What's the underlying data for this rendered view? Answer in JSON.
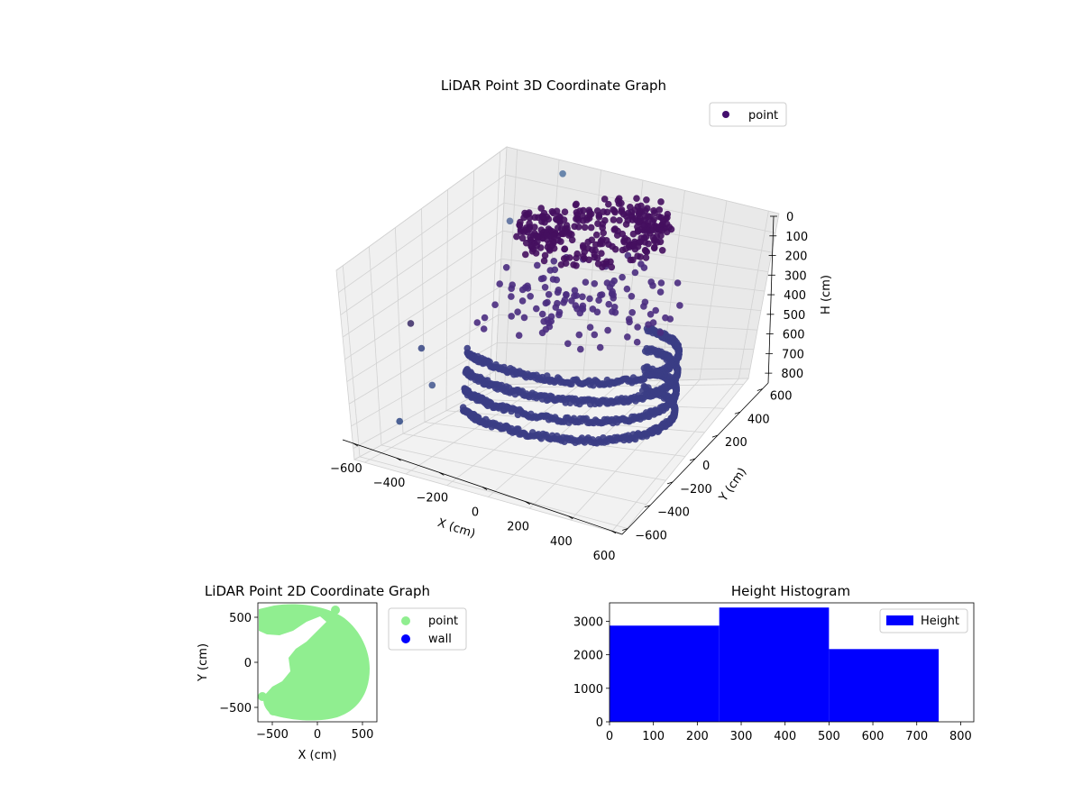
{
  "chart_data": [
    {
      "type": "scatter",
      "projection": "3d",
      "title": "LiDAR Point 3D Coordinate Graph",
      "xlabel": "X (cm)",
      "ylabel": "Y (cm)",
      "zlabel": "H (cm)",
      "x_ticks": [
        "−600",
        "−400",
        "−200",
        "0",
        "200",
        "400",
        "600"
      ],
      "y_ticks": [
        "−600",
        "−400",
        "−200",
        "0",
        "200",
        "400",
        "600"
      ],
      "z_ticks": [
        "0",
        "100",
        "200",
        "300",
        "400",
        "500",
        "600",
        "700",
        "800"
      ],
      "xlim": [
        -650,
        650
      ],
      "ylim": [
        -650,
        650
      ],
      "zlim": [
        0,
        850
      ],
      "z_inverted": true,
      "grid": true,
      "legend": {
        "position": "top-right",
        "entries": [
          "point"
        ]
      },
      "series": [
        {
          "name": "point",
          "color": "#440f6e",
          "description_points": "dense ring of points around the origin, wall ring radius ~550 cm heights 500-800 cm, inner canopy ring heights 100-250 cm, scattered points at x near -650"
        }
      ]
    },
    {
      "type": "scatter",
      "title": "LiDAR Point 2D Coordinate Graph",
      "xlabel": "X (cm)",
      "ylabel": "Y (cm)",
      "x_ticks": [
        "−500",
        "0",
        "500"
      ],
      "y_ticks": [
        "−500",
        "0",
        "500"
      ],
      "xlim": [
        -660,
        660
      ],
      "ylim": [
        -660,
        660
      ],
      "legend": {
        "position": "right",
        "entries": [
          "point",
          "wall"
        ]
      },
      "series": [
        {
          "name": "point",
          "color": "#90ee90"
        },
        {
          "name": "wall",
          "color": "#0000ff"
        }
      ]
    },
    {
      "type": "bar",
      "title": "Height Histogram",
      "x_ticks": [
        "0",
        "100",
        "200",
        "300",
        "400",
        "500",
        "600",
        "700",
        "800"
      ],
      "y_ticks": [
        "0",
        "1000",
        "2000",
        "3000"
      ],
      "xlim": [
        0,
        830
      ],
      "ylim": [
        0,
        3550
      ],
      "bins": [
        {
          "x0": 0,
          "x1": 250,
          "value": 2870
        },
        {
          "x0": 250,
          "x1": 500,
          "value": 3410
        },
        {
          "x0": 500,
          "x1": 750,
          "value": 2170
        }
      ],
      "legend": {
        "position": "top-right",
        "entries": [
          "Height"
        ]
      },
      "series": [
        {
          "name": "Height",
          "color": "#0000ff"
        }
      ]
    }
  ]
}
